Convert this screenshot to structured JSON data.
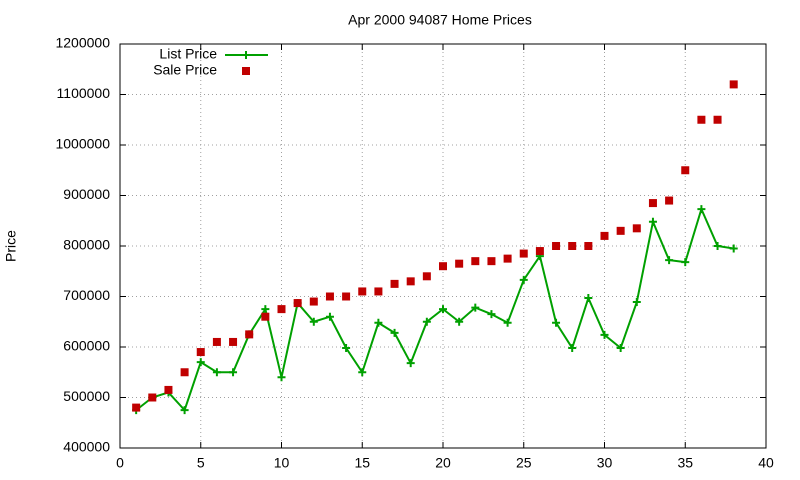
{
  "chart_data": {
    "type": "line",
    "title": "Apr 2000 94087 Home Prices",
    "y_label": "Price",
    "x": [
      1,
      2,
      3,
      4,
      5,
      6,
      7,
      8,
      9,
      10,
      11,
      12,
      13,
      14,
      15,
      16,
      17,
      18,
      19,
      20,
      21,
      22,
      23,
      24,
      25,
      26,
      27,
      28,
      29,
      30,
      31,
      32,
      33,
      34,
      35,
      36,
      37,
      38
    ],
    "series": [
      {
        "name": "List Price",
        "color": "#00a000",
        "style": "linespoints",
        "values": [
          475000,
          500000,
          510000,
          475000,
          570000,
          550000,
          550000,
          625000,
          675000,
          540000,
          687000,
          650000,
          660000,
          598000,
          550000,
          648000,
          628000,
          568000,
          650000,
          675000,
          650000,
          678000,
          665000,
          648000,
          733000,
          780000,
          648000,
          598000,
          697000,
          624000,
          598000,
          689000,
          848000,
          772000,
          768000,
          873000,
          800000,
          795000
        ]
      },
      {
        "name": "Sale Price",
        "color": "#c00000",
        "style": "points",
        "values": [
          480000,
          500000,
          515000,
          550000,
          590000,
          610000,
          610000,
          625000,
          660000,
          675000,
          687000,
          690000,
          700000,
          700000,
          710000,
          710000,
          725000,
          730000,
          740000,
          760000,
          765000,
          770000,
          770000,
          775000,
          785000,
          790000,
          800000,
          800000,
          800000,
          820000,
          830000,
          835000,
          885000,
          890000,
          950000,
          1050000,
          1050000,
          1120000
        ]
      }
    ],
    "xlim": [
      0,
      40
    ],
    "xticks": [
      0,
      5,
      10,
      15,
      20,
      25,
      30,
      35,
      40
    ],
    "ylim": [
      400000,
      1200000
    ],
    "yticks": [
      400000,
      500000,
      600000,
      700000,
      800000,
      900000,
      1000000,
      1100000,
      1200000
    ],
    "grid": true,
    "legend": "top-left"
  }
}
